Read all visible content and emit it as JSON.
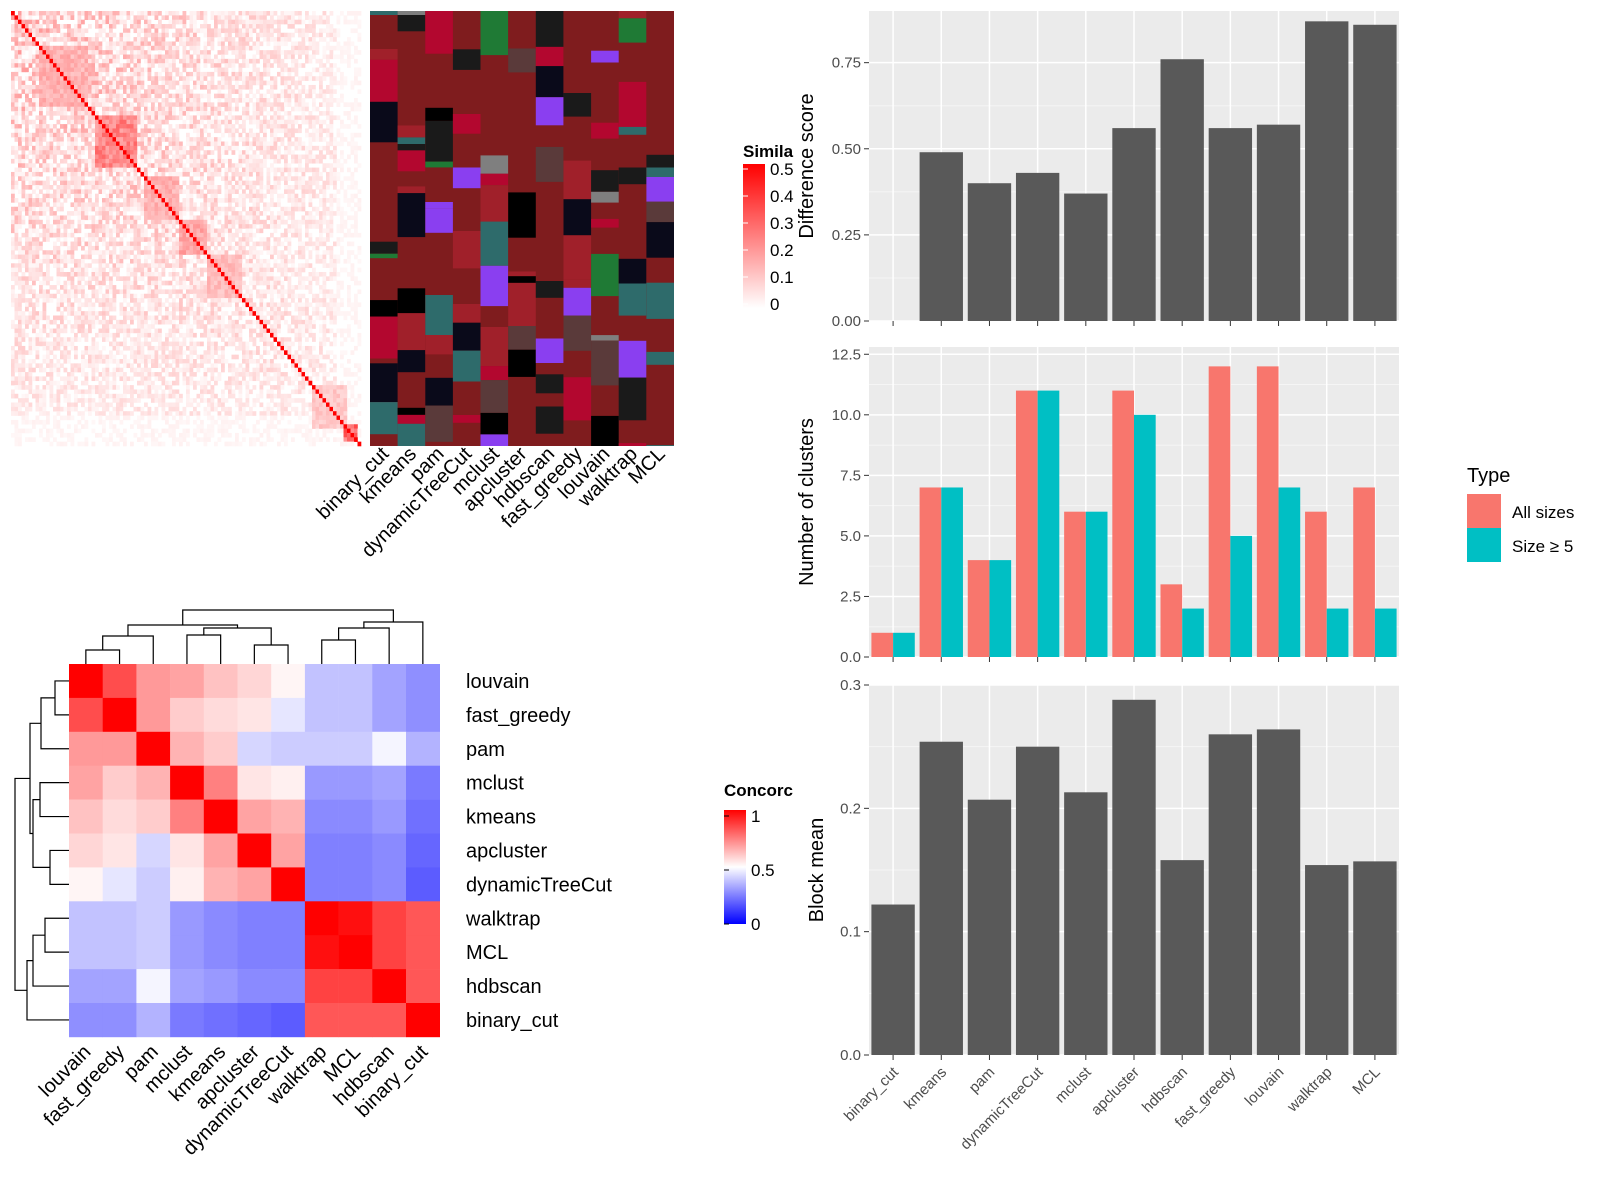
{
  "methods": [
    "binary_cut",
    "kmeans",
    "pam",
    "dynamicTreeCut",
    "mclust",
    "apcluster",
    "hdbscan",
    "fast_greedy",
    "louvain",
    "walktrap",
    "MCL"
  ],
  "colors": {
    "panel_bg": "#ebebeb",
    "grid": "#ffffff",
    "bar": "#595959",
    "all_sizes": "#f8766d",
    "size5": "#00bfc4",
    "sim_high": "#ff0000",
    "heat_low": "#0000ff",
    "heat_mid": "#ffffff",
    "cluster_base": "#7f1c1e"
  },
  "similarity_legend": {
    "title": "Simila",
    "ticks": [
      "0.5",
      "0.4",
      "0.3",
      "0.2",
      "0.1",
      "0"
    ]
  },
  "concordance_legend": {
    "title": "Concorc",
    "ticks": [
      "1",
      "0.5",
      "0"
    ]
  },
  "heatmap_col_labels": [
    "binary_cut",
    "kmeans",
    "pam",
    "dynamicTreeCut",
    "mclust",
    "apcluster",
    "hdbscan",
    "fast_greedy",
    "louvain",
    "walktrap",
    "MCL"
  ],
  "concordance": {
    "order": [
      "louvain",
      "fast_greedy",
      "pam",
      "mclust",
      "kmeans",
      "apcluster",
      "dynamicTreeCut",
      "walktrap",
      "MCL",
      "hdbscan",
      "binary_cut"
    ],
    "matrix": [
      [
        1.0,
        0.85,
        0.7,
        0.68,
        0.62,
        0.58,
        0.52,
        0.38,
        0.38,
        0.32,
        0.28
      ],
      [
        0.85,
        1.0,
        0.7,
        0.6,
        0.57,
        0.55,
        0.45,
        0.38,
        0.38,
        0.32,
        0.28
      ],
      [
        0.7,
        0.7,
        1.0,
        0.65,
        0.6,
        0.42,
        0.4,
        0.4,
        0.4,
        0.48,
        0.35
      ],
      [
        0.68,
        0.6,
        0.65,
        1.0,
        0.75,
        0.55,
        0.53,
        0.3,
        0.3,
        0.32,
        0.24
      ],
      [
        0.62,
        0.57,
        0.6,
        0.75,
        1.0,
        0.68,
        0.65,
        0.27,
        0.27,
        0.3,
        0.22
      ],
      [
        0.58,
        0.55,
        0.42,
        0.55,
        0.68,
        1.0,
        0.68,
        0.25,
        0.25,
        0.27,
        0.2
      ],
      [
        0.52,
        0.45,
        0.4,
        0.53,
        0.65,
        0.68,
        1.0,
        0.25,
        0.25,
        0.27,
        0.18
      ],
      [
        0.38,
        0.38,
        0.4,
        0.3,
        0.27,
        0.25,
        0.25,
        1.0,
        0.97,
        0.87,
        0.83
      ],
      [
        0.38,
        0.38,
        0.4,
        0.3,
        0.27,
        0.25,
        0.25,
        0.97,
        1.0,
        0.87,
        0.83
      ],
      [
        0.32,
        0.32,
        0.48,
        0.32,
        0.3,
        0.27,
        0.27,
        0.87,
        0.87,
        1.0,
        0.83
      ],
      [
        0.28,
        0.28,
        0.35,
        0.24,
        0.22,
        0.2,
        0.18,
        0.83,
        0.83,
        0.83,
        1.0
      ]
    ]
  },
  "chart_data": [
    {
      "type": "bar",
      "categories": [
        "binary_cut",
        "kmeans",
        "pam",
        "dynamicTreeCut",
        "mclust",
        "apcluster",
        "hdbscan",
        "fast_greedy",
        "louvain",
        "walktrap",
        "MCL"
      ],
      "values": [
        0,
        0.49,
        0.4,
        0.43,
        0.37,
        0.56,
        0.76,
        0.56,
        0.57,
        0.87,
        0.86
      ],
      "ylabel": "Difference score",
      "ylim": [
        0,
        0.9
      ],
      "yticks": [
        0,
        0.25,
        0.5,
        0.75
      ],
      "ytick_labels": [
        "0.00",
        "0.25",
        "0.50",
        "0.75"
      ]
    },
    {
      "type": "bar",
      "categories": [
        "binary_cut",
        "kmeans",
        "pam",
        "dynamicTreeCut",
        "mclust",
        "apcluster",
        "hdbscan",
        "fast_greedy",
        "louvain",
        "walktrap",
        "MCL"
      ],
      "series": [
        {
          "name": "All sizes",
          "values": [
            1,
            7,
            4,
            11,
            6,
            11,
            3,
            12,
            12,
            6,
            7
          ]
        },
        {
          "name": "Size ≥ 5",
          "values": [
            1,
            7,
            4,
            11,
            6,
            10,
            2,
            5,
            7,
            2,
            2
          ]
        }
      ],
      "ylabel": "Number of clusters",
      "ylim": [
        0,
        12.8
      ],
      "yticks": [
        0,
        2.5,
        5,
        7.5,
        10,
        12.5
      ],
      "ytick_labels": [
        "0.0",
        "2.5",
        "5.0",
        "7.5",
        "10.0",
        "12.5"
      ],
      "legend": {
        "title": "Type",
        "position": "right"
      }
    },
    {
      "type": "bar",
      "categories": [
        "binary_cut",
        "kmeans",
        "pam",
        "dynamicTreeCut",
        "mclust",
        "apcluster",
        "hdbscan",
        "fast_greedy",
        "louvain",
        "walktrap",
        "MCL"
      ],
      "values": [
        0.122,
        0.254,
        0.207,
        0.25,
        0.213,
        0.288,
        0.158,
        0.26,
        0.264,
        0.154,
        0.157
      ],
      "ylabel": "Block mean",
      "ylim": [
        0,
        0.3
      ],
      "yticks": [
        0,
        0.1,
        0.2,
        0.3
      ],
      "ytick_labels": [
        "0.0",
        "0.1",
        "0.2",
        "0.3"
      ],
      "xtick_labels": [
        "binary_cut",
        "kmeans",
        "pam",
        "dynamicTreeCut",
        "mclust",
        "apcluster",
        "hdbscan",
        "fast_greedy",
        "louvain",
        "walktrap",
        "MCL"
      ]
    }
  ]
}
